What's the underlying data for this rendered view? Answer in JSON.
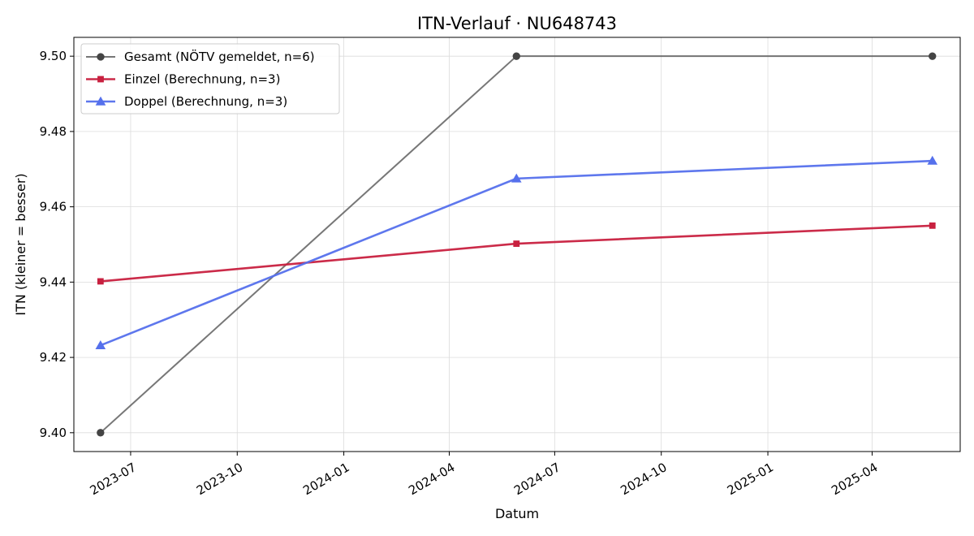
{
  "chart_data": {
    "type": "line",
    "title": "ITN-Verlauf · NU648743",
    "xlabel": "Datum",
    "ylabel": "ITN  (kleiner = besser)",
    "x_ticks": [
      "2023-07",
      "2023-10",
      "2024-01",
      "2024-04",
      "2024-07",
      "2024-10",
      "2025-01",
      "2025-04"
    ],
    "y_ticks": [
      "9.40",
      "9.42",
      "9.44",
      "9.46",
      "9.48",
      "9.50"
    ],
    "ylim": [
      9.395,
      9.505
    ],
    "xlim": [
      "2023-05-13",
      "2025-06-16"
    ],
    "grid": true,
    "legend_position": "top-left",
    "series": [
      {
        "name": "Gesamt (NÖTV gemeldet, n=6)",
        "color": "#555555",
        "marker": "circle",
        "x": [
          "2023-06-05",
          "2024-05-29",
          "2025-05-23"
        ],
        "y": [
          9.4,
          9.5,
          9.5
        ]
      },
      {
        "name": "Einzel (Berechnung, n=3)",
        "color": "#c8203f",
        "marker": "square",
        "x": [
          "2023-06-05",
          "2024-05-29",
          "2025-05-23"
        ],
        "y": [
          9.4402,
          9.4502,
          9.455
        ]
      },
      {
        "name": "Doppel (Berechnung, n=3)",
        "color": "#5570ec",
        "marker": "triangle",
        "x": [
          "2023-06-05",
          "2024-05-29",
          "2025-05-23"
        ],
        "y": [
          9.4232,
          9.4675,
          9.4722
        ]
      }
    ]
  }
}
